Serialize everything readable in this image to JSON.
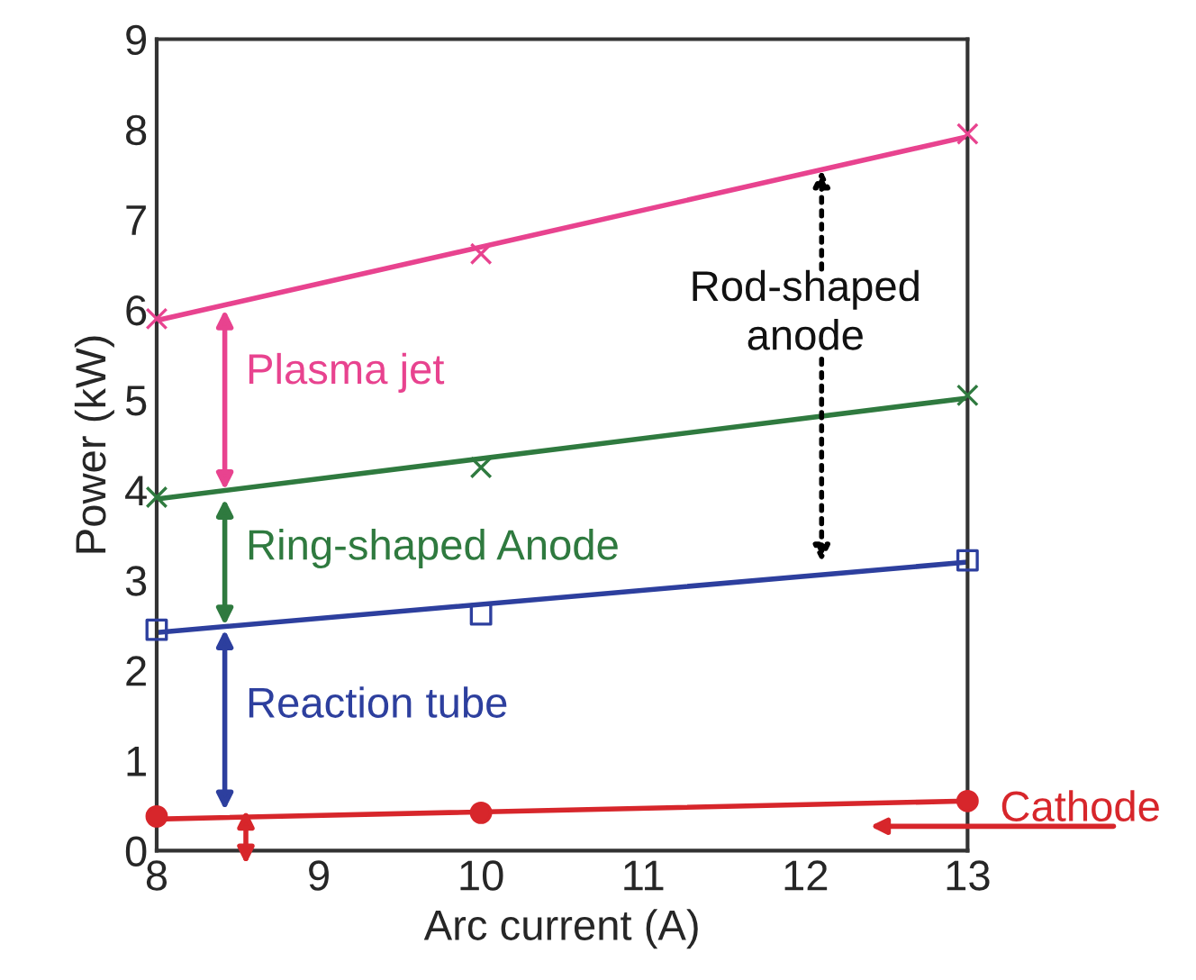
{
  "chart_data": {
    "type": "scatter",
    "xlabel": "Arc current (A)",
    "ylabel": "Power (kW)",
    "xlim": [
      8,
      13
    ],
    "ylim": [
      0,
      9
    ],
    "xticks": [
      8,
      9,
      10,
      11,
      12,
      13
    ],
    "yticks": [
      0,
      1,
      2,
      3,
      4,
      5,
      6,
      7,
      8,
      9
    ],
    "grid": false,
    "series": [
      {
        "color": "#e8438f",
        "marker": "cross",
        "x": [
          8,
          10,
          13
        ],
        "values": [
          5.9,
          6.62,
          7.95
        ]
      },
      {
        "color": "#2f7a3f",
        "marker": "cross",
        "x": [
          8,
          10,
          13
        ],
        "values": [
          3.92,
          4.25,
          5.05
        ]
      },
      {
        "color": "#2d3f9e",
        "marker": "square",
        "x": [
          8,
          10,
          13
        ],
        "values": [
          2.45,
          2.62,
          3.22
        ]
      },
      {
        "color": "#d7262b",
        "marker": "circle",
        "x": [
          8,
          10,
          13
        ],
        "values": [
          0.38,
          0.42,
          0.55
        ]
      },
      {
        "type": "line",
        "color": "#e8438f",
        "marker": "none",
        "x": [
          8,
          13
        ],
        "values": [
          5.88,
          7.92
        ]
      },
      {
        "type": "line",
        "color": "#2f7a3f",
        "marker": "none",
        "x": [
          8,
          13
        ],
        "values": [
          3.9,
          5.02
        ]
      },
      {
        "type": "line",
        "color": "#2d3f9e",
        "marker": "none",
        "x": [
          8,
          13
        ],
        "values": [
          2.42,
          3.2
        ]
      },
      {
        "type": "line",
        "color": "#d7262b",
        "marker": "none",
        "x": [
          8,
          13
        ],
        "values": [
          0.35,
          0.55
        ]
      }
    ],
    "annotations": [
      {
        "text": "Plasma jet",
        "x": 8.42,
        "y": 6.05
      },
      "Ring-shaped Anode",
      "Reaction tube",
      "Cathode",
      {
        "text": "Rod-shaped\nanode",
        "x": 12.1,
        "y": 7.55
      }
    ]
  }
}
